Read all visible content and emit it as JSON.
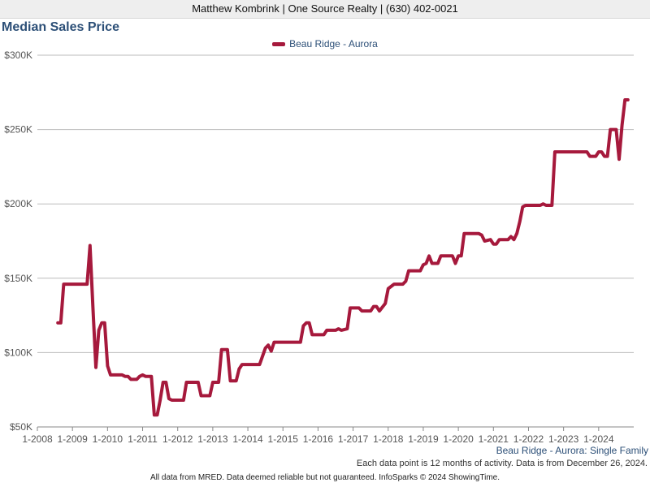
{
  "header": {
    "agent_line": "Matthew Kombrink | One Source Realty | (630) 402-0021"
  },
  "footer": {
    "property_type_note": "Beau Ridge - Aurora: Single Family",
    "activity_note": "Each data point is 12 months of activity. Data is from December 26, 2024.",
    "disclaimer": "All data from MRED. Data deemed reliable but not guaranteed. InfoSparks © 2024 ShowingTime."
  },
  "colors": {
    "series": "#a6193c",
    "title": "#2c4f77",
    "grid": "#bbbbbb",
    "axis_text": "#555555"
  },
  "chart_data": {
    "type": "line",
    "title": "Median Sales Price",
    "legend_position": "top-center",
    "grid": true,
    "y_ticks": [
      "$50K",
      "$100K",
      "$150K",
      "$200K",
      "$250K",
      "$300K"
    ],
    "y_tick_values": [
      50000,
      100000,
      150000,
      200000,
      250000,
      300000
    ],
    "ylim": [
      50000,
      300000
    ],
    "x_ticks": [
      "1-2008",
      "1-2009",
      "1-2010",
      "1-2011",
      "1-2012",
      "1-2013",
      "1-2014",
      "1-2015",
      "1-2016",
      "1-2017",
      "1-2018",
      "1-2019",
      "1-2020",
      "1-2021",
      "1-2022",
      "1-2023",
      "1-2024"
    ],
    "xlim": [
      "1-2008",
      "1-2025"
    ],
    "series": [
      {
        "name": "Beau Ridge - Aurora",
        "points": [
          [
            "8-2008",
            120000
          ],
          [
            "9-2008",
            120000
          ],
          [
            "10-2008",
            146000
          ],
          [
            "1-2009",
            146000
          ],
          [
            "4-2009",
            146000
          ],
          [
            "6-2009",
            146000
          ],
          [
            "7-2009",
            172000
          ],
          [
            "8-2009",
            130000
          ],
          [
            "9-2009",
            90000
          ],
          [
            "10-2009",
            115000
          ],
          [
            "11-2009",
            120000
          ],
          [
            "12-2009",
            120000
          ],
          [
            "1-2010",
            91000
          ],
          [
            "2-2010",
            85000
          ],
          [
            "6-2010",
            85000
          ],
          [
            "7-2010",
            84000
          ],
          [
            "8-2010",
            84000
          ],
          [
            "9-2010",
            82000
          ],
          [
            "11-2010",
            82000
          ],
          [
            "12-2010",
            84000
          ],
          [
            "1-2011",
            85000
          ],
          [
            "2-2011",
            84000
          ],
          [
            "4-2011",
            84000
          ],
          [
            "5-2011",
            58000
          ],
          [
            "6-2011",
            58000
          ],
          [
            "7-2011",
            68000
          ],
          [
            "8-2011",
            80000
          ],
          [
            "9-2011",
            80000
          ],
          [
            "10-2011",
            69000
          ],
          [
            "11-2011",
            68000
          ],
          [
            "3-2012",
            68000
          ],
          [
            "4-2012",
            80000
          ],
          [
            "8-2012",
            80000
          ],
          [
            "9-2012",
            71000
          ],
          [
            "12-2012",
            71000
          ],
          [
            "1-2013",
            80000
          ],
          [
            "3-2013",
            80000
          ],
          [
            "4-2013",
            102000
          ],
          [
            "6-2013",
            102000
          ],
          [
            "7-2013",
            81000
          ],
          [
            "9-2013",
            81000
          ],
          [
            "10-2013",
            89000
          ],
          [
            "11-2013",
            92000
          ],
          [
            "5-2014",
            92000
          ],
          [
            "7-2014",
            103000
          ],
          [
            "8-2014",
            105000
          ],
          [
            "9-2014",
            101000
          ],
          [
            "10-2014",
            107000
          ],
          [
            "7-2015",
            107000
          ],
          [
            "8-2015",
            118000
          ],
          [
            "9-2015",
            120000
          ],
          [
            "10-2015",
            120000
          ],
          [
            "11-2015",
            112000
          ],
          [
            "3-2016",
            112000
          ],
          [
            "4-2016",
            115000
          ],
          [
            "7-2016",
            115000
          ],
          [
            "8-2016",
            116000
          ],
          [
            "9-2016",
            115000
          ],
          [
            "11-2016",
            116000
          ],
          [
            "12-2016",
            130000
          ],
          [
            "3-2017",
            130000
          ],
          [
            "4-2017",
            128000
          ],
          [
            "7-2017",
            128000
          ],
          [
            "8-2017",
            131000
          ],
          [
            "9-2017",
            131000
          ],
          [
            "10-2017",
            128000
          ],
          [
            "12-2017",
            133000
          ],
          [
            "1-2018",
            143000
          ],
          [
            "3-2018",
            146000
          ],
          [
            "6-2018",
            146000
          ],
          [
            "7-2018",
            148000
          ],
          [
            "8-2018",
            155000
          ],
          [
            "12-2018",
            155000
          ],
          [
            "1-2019",
            159000
          ],
          [
            "2-2019",
            160000
          ],
          [
            "3-2019",
            165000
          ],
          [
            "4-2019",
            160000
          ],
          [
            "6-2019",
            160000
          ],
          [
            "7-2019",
            165000
          ],
          [
            "11-2019",
            165000
          ],
          [
            "12-2019",
            160000
          ],
          [
            "1-2020",
            165000
          ],
          [
            "2-2020",
            165000
          ],
          [
            "3-2020",
            180000
          ],
          [
            "8-2020",
            180000
          ],
          [
            "9-2020",
            179000
          ],
          [
            "10-2020",
            175000
          ],
          [
            "12-2020",
            176000
          ],
          [
            "1-2021",
            173000
          ],
          [
            "2-2021",
            173000
          ],
          [
            "3-2021",
            176000
          ],
          [
            "6-2021",
            176000
          ],
          [
            "7-2021",
            178000
          ],
          [
            "8-2021",
            176000
          ],
          [
            "9-2021",
            180000
          ],
          [
            "10-2021",
            188000
          ],
          [
            "11-2021",
            198000
          ],
          [
            "12-2021",
            199000
          ],
          [
            "5-2022",
            199000
          ],
          [
            "6-2022",
            200000
          ],
          [
            "7-2022",
            199000
          ],
          [
            "9-2022",
            199000
          ],
          [
            "10-2022",
            235000
          ],
          [
            "9-2023",
            235000
          ],
          [
            "10-2023",
            232000
          ],
          [
            "12-2023",
            232000
          ],
          [
            "1-2024",
            235000
          ],
          [
            "2-2024",
            235000
          ],
          [
            "3-2024",
            232000
          ],
          [
            "4-2024",
            232000
          ],
          [
            "5-2024",
            250000
          ],
          [
            "6-2024",
            250000
          ],
          [
            "7-2024",
            250000
          ],
          [
            "8-2024",
            230000
          ],
          [
            "9-2024",
            253000
          ],
          [
            "10-2024",
            270000
          ],
          [
            "11-2024",
            270000
          ]
        ]
      }
    ]
  }
}
